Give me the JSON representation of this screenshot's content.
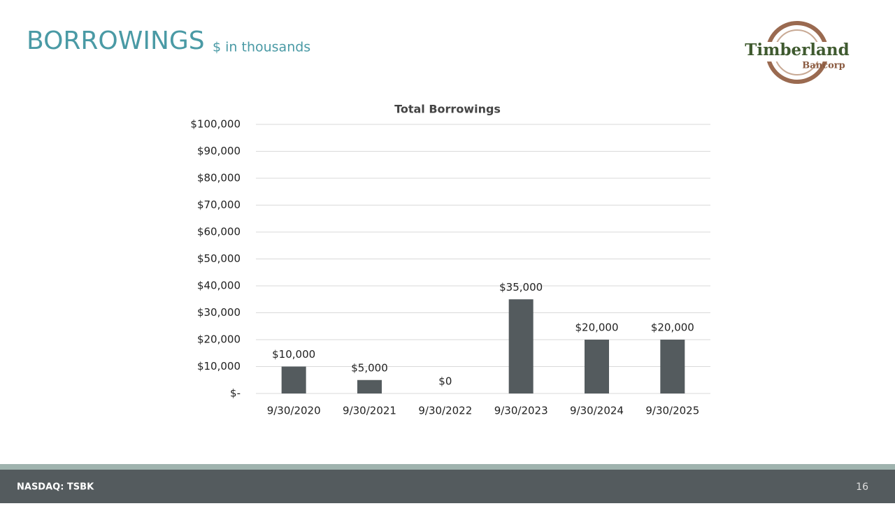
{
  "slide": {
    "title": "BORROWINGS",
    "subtitle": "$ in thousands"
  },
  "logo": {
    "name": "Timberland",
    "sub": "Bancorp"
  },
  "footer": {
    "ticker": "NASDAQ: TSBK",
    "page": "16"
  },
  "chart_data": {
    "type": "bar",
    "title": "Total Borrowings",
    "categories": [
      "9/30/2020",
      "9/30/2021",
      "9/30/2022",
      "9/30/2023",
      "9/30/2024",
      "9/30/2025"
    ],
    "values": [
      10000,
      5000,
      0,
      35000,
      20000,
      20000
    ],
    "value_labels": [
      "$10,000",
      "$5,000",
      "$0",
      "$35,000",
      "$20,000",
      "$20,000"
    ],
    "color": "#545b5e",
    "ylim": [
      0,
      100000
    ],
    "yticks": [
      {
        "value": 0,
        "label": "$-"
      },
      {
        "value": 10000,
        "label": "$10,000"
      },
      {
        "value": 20000,
        "label": "$20,000"
      },
      {
        "value": 30000,
        "label": "$30,000"
      },
      {
        "value": 40000,
        "label": "$40,000"
      },
      {
        "value": 50000,
        "label": "$50,000"
      },
      {
        "value": 60000,
        "label": "$60,000"
      },
      {
        "value": 70000,
        "label": "$70,000"
      },
      {
        "value": 80000,
        "label": "$80,000"
      },
      {
        "value": 90000,
        "label": "$90,000"
      },
      {
        "value": 100000,
        "label": "$100,000"
      }
    ],
    "grid": true
  }
}
